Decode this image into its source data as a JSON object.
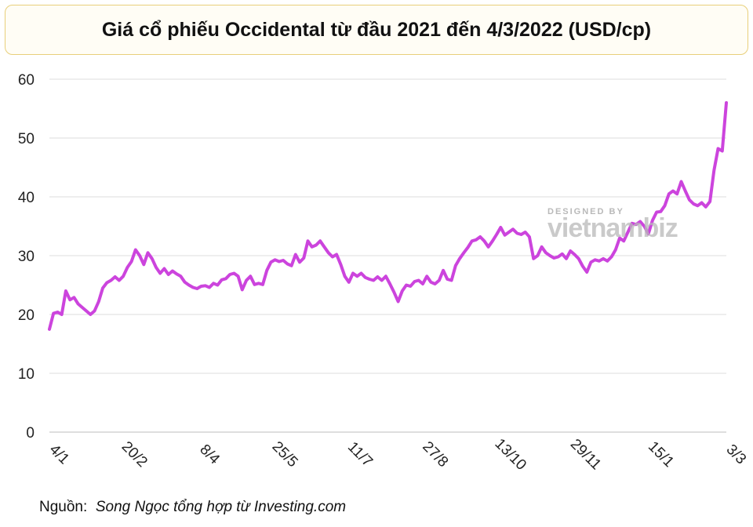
{
  "chart_data": {
    "type": "line",
    "title": "Giá cổ phiếu Occidental từ đầu 2021 đến 4/3/2022 (USD/cp)",
    "xlabel": "",
    "ylabel": "",
    "ylim": [
      0,
      60
    ],
    "yticks": [
      0,
      10,
      20,
      30,
      40,
      50,
      60
    ],
    "grid": true,
    "legend": "none",
    "color": "#cc44dd",
    "x_tick_labels": [
      "4/1",
      "20/2",
      "8/4",
      "25/5",
      "11/7",
      "27/8",
      "13/10",
      "29/11",
      "15/1",
      "3/3"
    ],
    "series": [
      {
        "name": "Occidental",
        "values": [
          17.5,
          20.2,
          20.4,
          20.0,
          24.0,
          22.5,
          22.9,
          21.8,
          21.2,
          20.6,
          20.0,
          20.6,
          22.2,
          24.5,
          25.4,
          25.8,
          26.4,
          25.8,
          26.5,
          28.0,
          29.0,
          31.0,
          30.0,
          28.5,
          30.5,
          29.5,
          28.0,
          27.0,
          27.8,
          26.8,
          27.4,
          26.9,
          26.5,
          25.5,
          25.0,
          24.6,
          24.4,
          24.8,
          24.9,
          24.6,
          25.3,
          25.0,
          25.9,
          26.1,
          26.8,
          27.0,
          26.5,
          24.2,
          25.8,
          26.5,
          25.1,
          25.3,
          25.1,
          27.5,
          28.9,
          29.3,
          29.0,
          29.2,
          28.6,
          28.3,
          30.2,
          28.9,
          29.6,
          32.5,
          31.5,
          31.8,
          32.5,
          31.5,
          30.5,
          29.8,
          30.2,
          28.5,
          26.5,
          25.5,
          27.0,
          26.5,
          27.0,
          26.3,
          26.0,
          25.8,
          26.4,
          25.8,
          26.5,
          25.2,
          23.8,
          22.2,
          24.0,
          25.0,
          24.8,
          25.6,
          25.8,
          25.2,
          26.5,
          25.5,
          25.2,
          25.8,
          27.5,
          26.0,
          25.8,
          28.3,
          29.5,
          30.5,
          31.4,
          32.5,
          32.7,
          33.2,
          32.5,
          31.5,
          32.5,
          33.6,
          34.8,
          33.5,
          34.0,
          34.5,
          33.8,
          33.6,
          34.0,
          33.2,
          29.5,
          30.0,
          31.5,
          30.5,
          30.0,
          29.6,
          29.8,
          30.3,
          29.5,
          30.8,
          30.2,
          29.5,
          28.2,
          27.2,
          28.9,
          29.3,
          29.1,
          29.5,
          29.1,
          29.8,
          31.0,
          33.0,
          32.5,
          34.0,
          35.5,
          35.3,
          35.8,
          35.0,
          33.7,
          36.0,
          37.4,
          37.5,
          38.5,
          40.5,
          41.0,
          40.5,
          42.6,
          41.0,
          39.5,
          38.8,
          38.5,
          39.0,
          38.3,
          39.2,
          44.5,
          48.2,
          47.8,
          56.0
        ]
      }
    ]
  },
  "watermark": {
    "designed_by": "DESIGNED BY",
    "brand": "vietnambiz"
  },
  "source": {
    "label": "Nguồn:",
    "text": "Song Ngọc tổng hợp từ Investing.com"
  }
}
